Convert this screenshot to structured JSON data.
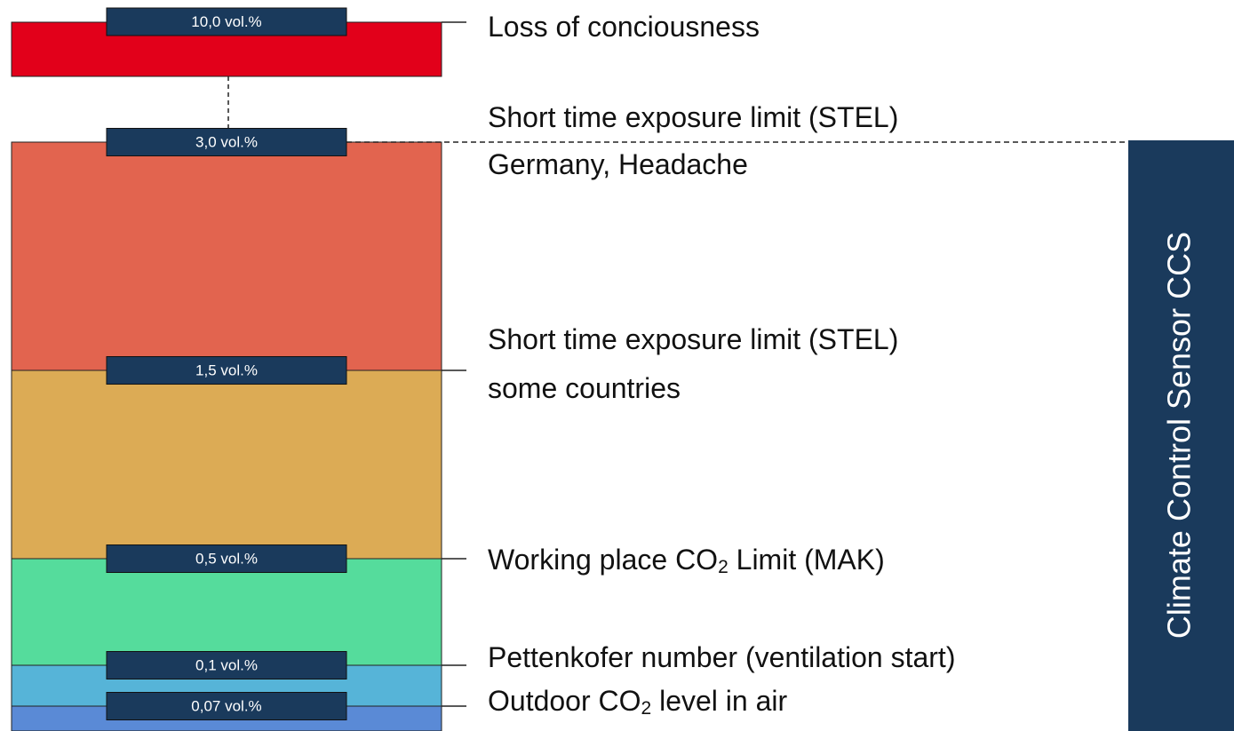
{
  "levels": [
    {
      "label": "10,0 vol.%",
      "color": "#e2001a",
      "description": [
        [
          {
            "text": "Loss of conciousness"
          }
        ]
      ]
    },
    {
      "label": "3,0 vol.%",
      "color": "#e2644f",
      "description": [
        [
          {
            "text": "Short time exposure limit (STEL)"
          }
        ],
        [
          {
            "text": "Germany, Headache"
          }
        ]
      ]
    },
    {
      "label": "1,5 vol.%",
      "color": "#dcab55",
      "description": [
        [
          {
            "text": "Short time exposure limit (STEL)"
          }
        ],
        [
          {
            "text": "some countries"
          }
        ]
      ]
    },
    {
      "label": "0,5 vol.%",
      "color": "#55dc9c",
      "description": [
        [
          {
            "text": "Working place CO"
          },
          {
            "text": "2",
            "sub": true
          },
          {
            "text": " Limit (MAK)"
          }
        ]
      ]
    },
    {
      "label": "0,1 vol.%",
      "color": "#56b4d8",
      "description": [
        [
          {
            "text": "Pettenkofer number (ventilation start)"
          }
        ]
      ]
    },
    {
      "label": "0,07 vol.%",
      "color": "#5a8ad6",
      "description": [
        [
          {
            "text": "Outdoor CO"
          },
          {
            "text": "2",
            "sub": true
          },
          {
            "text": " level in air"
          }
        ]
      ]
    }
  ],
  "side_label": "Climate Control Sensor CCS"
}
